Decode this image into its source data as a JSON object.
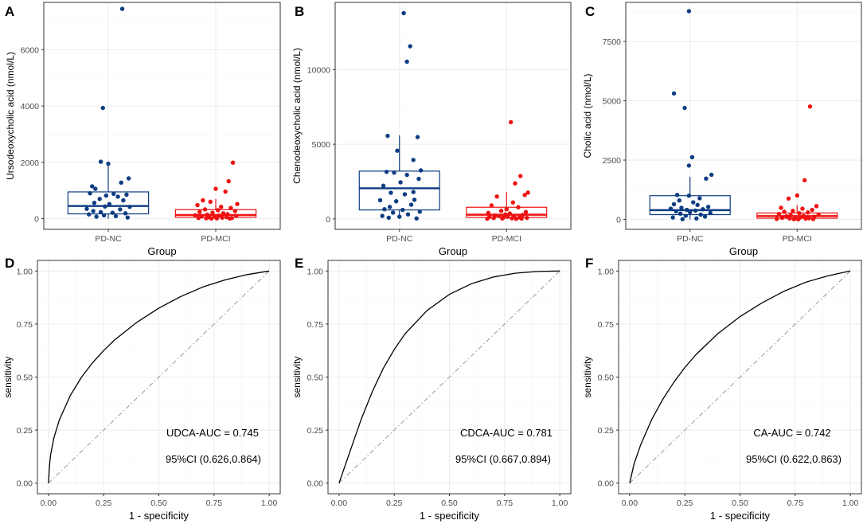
{
  "colors": {
    "nc": "#0d3c82",
    "mci": "#ee1111",
    "grid": "#ebebeb",
    "grid_minor": "#f5f5f5",
    "ref": "#9a9a9a"
  },
  "chart_data": [
    {
      "panel": "A",
      "type": "box",
      "ylabel": "Ursodeoxycholic acid (nmol/L)",
      "xlabel": "Group",
      "categories": [
        "PD-NC",
        "PD-MCI"
      ],
      "ylim": [
        -380,
        7680
      ],
      "yticks": [
        0,
        2000,
        4000,
        6000
      ],
      "boxes": [
        {
          "group": "PD-NC",
          "q1": 170,
          "median": 450,
          "q3": 950,
          "whisker_low": 0,
          "whisker_high": 2000
        },
        {
          "group": "PD-MCI",
          "q1": 50,
          "median": 130,
          "q3": 320,
          "whisker_low": 0,
          "whisker_high": 700
        }
      ],
      "points": [
        [
          1.13,
          7450
        ],
        [
          0.95,
          3930
        ],
        [
          0.93,
          2020
        ],
        [
          1.0,
          1950
        ],
        [
          0.85,
          1150
        ],
        [
          0.88,
          1060
        ],
        [
          1.19,
          1430
        ],
        [
          1.12,
          1280
        ],
        [
          0.83,
          900
        ],
        [
          1.05,
          880
        ],
        [
          1.17,
          850
        ],
        [
          0.98,
          820
        ],
        [
          1.09,
          780
        ],
        [
          0.92,
          700
        ],
        [
          1.14,
          650
        ],
        [
          0.87,
          560
        ],
        [
          1.01,
          520
        ],
        [
          0.97,
          430
        ],
        [
          1.2,
          420
        ],
        [
          0.8,
          350
        ],
        [
          1.11,
          330
        ],
        [
          0.86,
          270
        ],
        [
          0.93,
          230
        ],
        [
          1.04,
          210
        ],
        [
          1.16,
          190
        ],
        [
          0.82,
          150
        ],
        [
          0.96,
          120
        ],
        [
          1.07,
          90
        ],
        [
          0.89,
          70
        ],
        [
          1.18,
          40
        ],
        [
          2.16,
          1990
        ],
        [
          2.12,
          1330
        ],
        [
          2.0,
          1060
        ],
        [
          2.09,
          960
        ],
        [
          1.88,
          650
        ],
        [
          1.95,
          600
        ],
        [
          2.2,
          520
        ],
        [
          1.83,
          480
        ],
        [
          2.05,
          420
        ],
        [
          2.14,
          380
        ],
        [
          1.9,
          330
        ],
        [
          2.02,
          300
        ],
        [
          2.18,
          270
        ],
        [
          1.85,
          240
        ],
        [
          1.97,
          210
        ],
        [
          2.07,
          190
        ],
        [
          2.11,
          160
        ],
        [
          1.92,
          140
        ],
        [
          1.81,
          120
        ],
        [
          2.03,
          110
        ],
        [
          2.19,
          95
        ],
        [
          1.87,
          80
        ],
        [
          1.99,
          70
        ],
        [
          2.1,
          55
        ],
        [
          1.94,
          45
        ],
        [
          2.06,
          35
        ],
        [
          1.84,
          25
        ],
        [
          2.15,
          20
        ],
        [
          1.91,
          15
        ],
        [
          2.01,
          10
        ],
        [
          2.13,
          8
        ],
        [
          1.96,
          5
        ]
      ]
    },
    {
      "panel": "B",
      "type": "box",
      "ylabel": "Chenodeoxycholic acid (nmol/L)",
      "xlabel": "Group",
      "categories": [
        "PD-NC",
        "PD-MCI"
      ],
      "ylim": [
        -700,
        14500
      ],
      "yticks": [
        0,
        5000,
        10000
      ],
      "boxes": [
        {
          "group": "PD-NC",
          "q1": 600,
          "median": 2050,
          "q3": 3200,
          "whisker_low": 0,
          "whisker_high": 5600
        },
        {
          "group": "PD-MCI",
          "q1": 100,
          "median": 280,
          "q3": 780,
          "whisker_low": 0,
          "whisker_high": 1800
        }
      ],
      "points": [
        [
          1.04,
          13780
        ],
        [
          1.1,
          11560
        ],
        [
          1.07,
          10530
        ],
        [
          0.89,
          5560
        ],
        [
          1.17,
          5480
        ],
        [
          0.98,
          4570
        ],
        [
          1.13,
          3950
        ],
        [
          1.2,
          3250
        ],
        [
          0.88,
          3150
        ],
        [
          0.95,
          3100
        ],
        [
          1.07,
          2950
        ],
        [
          1.18,
          2680
        ],
        [
          1.01,
          2450
        ],
        [
          0.85,
          2220
        ],
        [
          1.13,
          1800
        ],
        [
          0.92,
          1750
        ],
        [
          1.05,
          1650
        ],
        [
          1.14,
          1280
        ],
        [
          0.82,
          1250
        ],
        [
          0.97,
          1180
        ],
        [
          1.11,
          950
        ],
        [
          0.91,
          800
        ],
        [
          0.86,
          650
        ],
        [
          1.03,
          600
        ],
        [
          1.19,
          480
        ],
        [
          0.94,
          420
        ],
        [
          1.08,
          300
        ],
        [
          0.84,
          200
        ],
        [
          1.0,
          150
        ],
        [
          0.9,
          80
        ],
        [
          1.16,
          30
        ],
        [
          2.04,
          6480
        ],
        [
          2.13,
          2870
        ],
        [
          2.08,
          2380
        ],
        [
          2.2,
          1760
        ],
        [
          2.17,
          1600
        ],
        [
          1.91,
          1500
        ],
        [
          2.06,
          1100
        ],
        [
          1.86,
          900
        ],
        [
          2.11,
          780
        ],
        [
          2.0,
          650
        ],
        [
          1.95,
          540
        ],
        [
          2.18,
          460
        ],
        [
          1.83,
          400
        ],
        [
          2.03,
          360
        ],
        [
          1.99,
          300
        ],
        [
          2.15,
          260
        ],
        [
          1.89,
          230
        ],
        [
          1.93,
          200
        ],
        [
          2.07,
          180
        ],
        [
          2.01,
          150
        ],
        [
          1.84,
          130
        ],
        [
          2.12,
          110
        ],
        [
          1.97,
          90
        ],
        [
          2.19,
          70
        ],
        [
          1.88,
          60
        ],
        [
          2.05,
          45
        ],
        [
          1.96,
          30
        ],
        [
          2.14,
          20
        ],
        [
          1.82,
          12
        ],
        [
          2.09,
          5
        ]
      ]
    },
    {
      "panel": "C",
      "type": "box",
      "ylabel": "Cholic acid (nmol/L)",
      "xlabel": "Group",
      "categories": [
        "PD-NC",
        "PD-MCI"
      ],
      "ylim": [
        -420,
        9150
      ],
      "yticks": [
        0,
        2500,
        5000,
        7500
      ],
      "boxes": [
        {
          "group": "PD-NC",
          "q1": 200,
          "median": 390,
          "q3": 1000,
          "whisker_low": 0,
          "whisker_high": 1800
        },
        {
          "group": "PD-MCI",
          "q1": 50,
          "median": 140,
          "q3": 270,
          "whisker_low": 0,
          "whisker_high": 600
        }
      ],
      "points": [
        [
          0.99,
          8780
        ],
        [
          0.85,
          5310
        ],
        [
          0.95,
          4700
        ],
        [
          1.02,
          2620
        ],
        [
          0.99,
          2270
        ],
        [
          1.2,
          1880
        ],
        [
          1.15,
          1720
        ],
        [
          0.88,
          1030
        ],
        [
          0.99,
          1000
        ],
        [
          1.09,
          890
        ],
        [
          0.9,
          800
        ],
        [
          1.03,
          720
        ],
        [
          0.85,
          640
        ],
        [
          1.07,
          610
        ],
        [
          1.17,
          530
        ],
        [
          0.92,
          490
        ],
        [
          0.82,
          450
        ],
        [
          1.12,
          430
        ],
        [
          0.97,
          400
        ],
        [
          1.05,
          370
        ],
        [
          0.87,
          340
        ],
        [
          1.0,
          300
        ],
        [
          1.19,
          270
        ],
        [
          0.91,
          240
        ],
        [
          1.1,
          200
        ],
        [
          0.96,
          150
        ],
        [
          1.14,
          120
        ],
        [
          0.84,
          80
        ],
        [
          1.06,
          40
        ],
        [
          0.93,
          10
        ],
        [
          2.12,
          4760
        ],
        [
          2.07,
          1650
        ],
        [
          2.0,
          1010
        ],
        [
          1.92,
          880
        ],
        [
          2.18,
          560
        ],
        [
          1.85,
          490
        ],
        [
          2.05,
          450
        ],
        [
          2.14,
          400
        ],
        [
          1.96,
          360
        ],
        [
          1.88,
          320
        ],
        [
          2.1,
          290
        ],
        [
          2.02,
          260
        ],
        [
          1.83,
          230
        ],
        [
          2.2,
          200
        ],
        [
          1.94,
          170
        ],
        [
          2.06,
          150
        ],
        [
          1.9,
          130
        ],
        [
          2.16,
          110
        ],
        [
          1.98,
          95
        ],
        [
          2.03,
          80
        ],
        [
          1.86,
          65
        ],
        [
          2.11,
          50
        ],
        [
          1.93,
          40
        ],
        [
          2.08,
          30
        ],
        [
          1.81,
          20
        ],
        [
          2.15,
          15
        ],
        [
          1.97,
          10
        ],
        [
          2.01,
          5
        ]
      ]
    },
    {
      "panel": "D",
      "type": "roc",
      "xlabel": "1 - specificity",
      "ylabel": "sensitivity",
      "xlim": [
        0,
        1
      ],
      "ylim": [
        0,
        1
      ],
      "ticks": [
        "0.00",
        "0.25",
        "0.50",
        "0.75",
        "1.00"
      ],
      "auc": 0.745,
      "ci": [
        0.626,
        0.864
      ],
      "annotations": [
        "UDCA-AUC = 0.745",
        "95%CI (0.626,0.864)"
      ],
      "curve": [
        [
          0,
          0
        ],
        [
          0.005,
          0.09
        ],
        [
          0.01,
          0.135
        ],
        [
          0.025,
          0.215
        ],
        [
          0.05,
          0.3
        ],
        [
          0.1,
          0.415
        ],
        [
          0.15,
          0.5
        ],
        [
          0.2,
          0.568
        ],
        [
          0.25,
          0.625
        ],
        [
          0.3,
          0.675
        ],
        [
          0.4,
          0.758
        ],
        [
          0.5,
          0.825
        ],
        [
          0.6,
          0.88
        ],
        [
          0.7,
          0.925
        ],
        [
          0.8,
          0.958
        ],
        [
          0.9,
          0.983
        ],
        [
          1,
          1
        ]
      ]
    },
    {
      "panel": "E",
      "type": "roc",
      "xlabel": "1 - specificity",
      "ylabel": "sensitivity",
      "xlim": [
        0,
        1
      ],
      "ylim": [
        0,
        1
      ],
      "ticks": [
        "0.00",
        "0.25",
        "0.50",
        "0.75",
        "1.00"
      ],
      "auc": 0.781,
      "ci": [
        0.667,
        0.894
      ],
      "annotations": [
        "CDCA-AUC = 0.781",
        "95%CI (0.667,0.894)"
      ],
      "curve": [
        [
          0,
          0
        ],
        [
          0.02,
          0.06
        ],
        [
          0.05,
          0.15
        ],
        [
          0.1,
          0.3
        ],
        [
          0.15,
          0.43
        ],
        [
          0.2,
          0.54
        ],
        [
          0.25,
          0.63
        ],
        [
          0.3,
          0.705
        ],
        [
          0.4,
          0.815
        ],
        [
          0.5,
          0.89
        ],
        [
          0.6,
          0.94
        ],
        [
          0.7,
          0.972
        ],
        [
          0.8,
          0.99
        ],
        [
          0.9,
          0.998
        ],
        [
          1,
          1
        ]
      ]
    },
    {
      "panel": "F",
      "type": "roc",
      "xlabel": "1 - specificity",
      "ylabel": "sensitivity",
      "xlim": [
        0,
        1
      ],
      "ylim": [
        0,
        1
      ],
      "ticks": [
        "0.00",
        "0.25",
        "0.50",
        "0.75",
        "1.00"
      ],
      "auc": 0.742,
      "ci": [
        0.622,
        0.863
      ],
      "annotations": [
        "CA-AUC = 0.742",
        "95%CI (0.622,0.863)"
      ],
      "curve": [
        [
          0,
          0
        ],
        [
          0.02,
          0.09
        ],
        [
          0.05,
          0.18
        ],
        [
          0.1,
          0.3
        ],
        [
          0.15,
          0.395
        ],
        [
          0.2,
          0.475
        ],
        [
          0.25,
          0.545
        ],
        [
          0.3,
          0.605
        ],
        [
          0.4,
          0.705
        ],
        [
          0.5,
          0.785
        ],
        [
          0.6,
          0.85
        ],
        [
          0.7,
          0.905
        ],
        [
          0.8,
          0.948
        ],
        [
          0.9,
          0.978
        ],
        [
          1,
          1
        ]
      ]
    }
  ]
}
